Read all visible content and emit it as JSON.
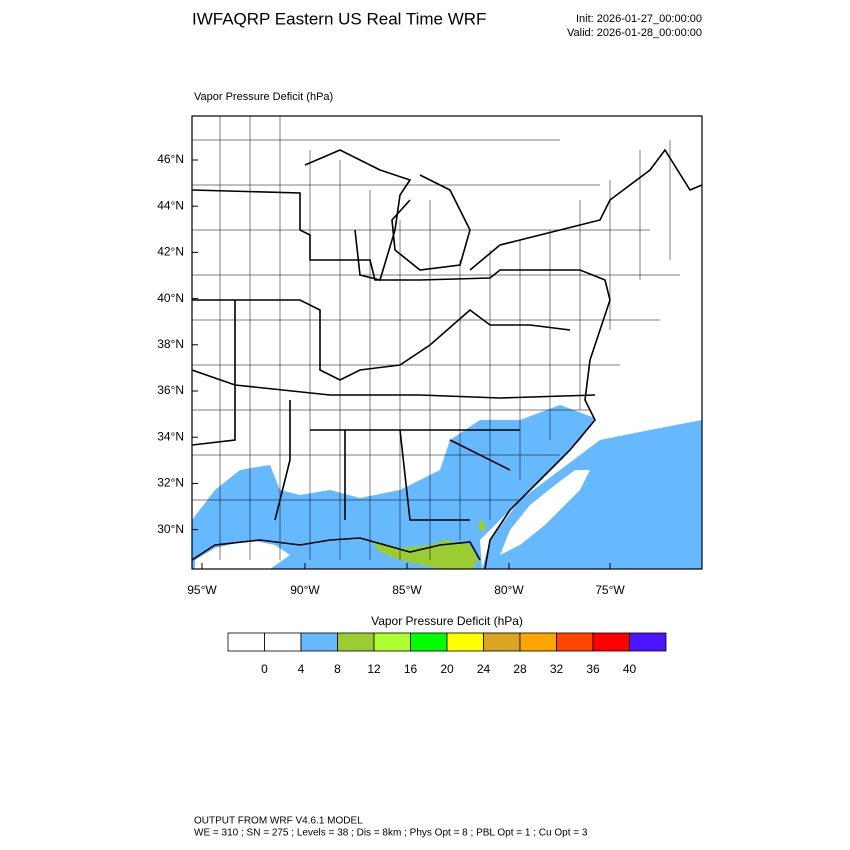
{
  "header": {
    "title": "IWFAQRP Eastern US Real Time WRF",
    "init": "Init: 2026-01-27_00:00:00",
    "valid": "Valid: 2026-01-28_00:00:00"
  },
  "map": {
    "label": "Vapor Pressure Deficit   (hPa)",
    "lat_labels": [
      "46°N",
      "44°N",
      "42°N",
      "40°N",
      "38°N",
      "36°N",
      "34°N",
      "32°N",
      "30°N"
    ],
    "lon_labels": [
      "95°W",
      "90°W",
      "85°W",
      "80°W",
      "75°W"
    ]
  },
  "colorbar": {
    "title": "Vapor Pressure Deficit  (hPa)",
    "colors": [
      "#ffffff",
      "#ffffff",
      "#66b8ff",
      "#9acd32",
      "#adff2f",
      "#00ff00",
      "#ffff00",
      "#daa520",
      "#ffa500",
      "#ff4500",
      "#ff0000",
      "#4b16ff"
    ],
    "levels": [
      0,
      4,
      8,
      12,
      16,
      20,
      24,
      28,
      32,
      36,
      40
    ]
  },
  "footer": {
    "lines": [
      "OUTPUT FROM WRF V4.6.1 MODEL",
      "WE = 310 ; SN = 275 ; Levels = 38 ; Dis = 8km ; Phys Opt = 8 ; PBL Opt = 1 ; Cu Opt = 3"
    ]
  }
}
